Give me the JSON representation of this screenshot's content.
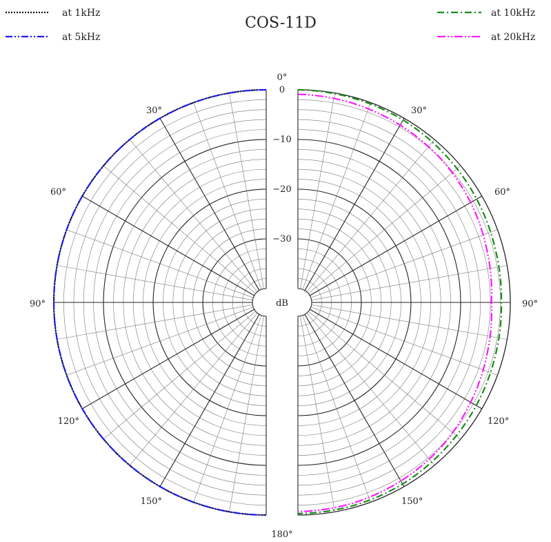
{
  "chart_data": {
    "type": "polar",
    "title": "COS-11D",
    "radial_unit": "dB",
    "radial_range": [
      -40,
      0
    ],
    "radial_ticks": [
      {
        "value": 0,
        "label": "0"
      },
      {
        "value": -10,
        "label": "−10"
      },
      {
        "value": -20,
        "label": "−20"
      },
      {
        "value": -30,
        "label": "−30"
      }
    ],
    "angle_ticks": [
      {
        "value": 0,
        "label": "0°",
        "side": "center"
      },
      {
        "value": 30,
        "label": "30°",
        "side": "both"
      },
      {
        "value": 60,
        "label": "60°",
        "side": "both"
      },
      {
        "value": 90,
        "label": "90°",
        "side": "both"
      },
      {
        "value": 120,
        "label": "120°",
        "side": "both"
      },
      {
        "value": 150,
        "label": "150°",
        "side": "both"
      },
      {
        "value": 180,
        "label": "180°",
        "side": "center"
      }
    ],
    "angles": [
      0,
      15,
      30,
      45,
      60,
      75,
      90,
      105,
      120,
      135,
      150,
      165,
      180
    ],
    "series": [
      {
        "name": "at 1kHz",
        "side": "left",
        "color": "#111111",
        "dash": "2,2",
        "values": [
          0,
          0,
          0,
          0,
          0,
          0,
          0,
          0,
          0,
          0,
          0,
          0,
          0
        ]
      },
      {
        "name": "at 5kHz",
        "side": "left",
        "color": "#1a1aff",
        "dash": "10,3,2,3,2,3",
        "values": [
          0,
          0,
          0,
          0,
          0,
          0,
          0,
          0,
          0,
          0,
          0,
          0,
          0
        ]
      },
      {
        "name": "at 10kHz",
        "side": "right",
        "color": "#1a8a1a",
        "dash": "10,4,2,4",
        "values": [
          0,
          -0.2,
          -0.4,
          -0.8,
          -1.2,
          -1.6,
          -1.8,
          -1.6,
          -1.3,
          -1.0,
          -0.6,
          -0.4,
          -0.3
        ]
      },
      {
        "name": "at 20kHz",
        "side": "right",
        "color": "#ff1aff",
        "dash": "12,3,2,3,2,3",
        "values": [
          -0.9,
          -1.2,
          -1.6,
          -2.0,
          -2.6,
          -3.3,
          -3.8,
          -3.3,
          -2.6,
          -1.8,
          -1.3,
          -0.9,
          -0.7
        ]
      }
    ],
    "legend": [
      {
        "label": "at 1kHz",
        "position": "top-left"
      },
      {
        "label": "at 5kHz",
        "position": "top-left"
      },
      {
        "label": "at 10kHz",
        "position": "top-right"
      },
      {
        "label": "at 20kHz",
        "position": "top-right"
      }
    ],
    "grid": true
  }
}
